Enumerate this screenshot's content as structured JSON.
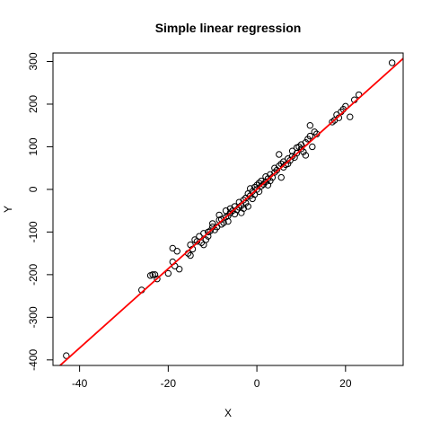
{
  "chart_data": {
    "type": "scatter",
    "title": "Simple linear regression",
    "xlabel": "X",
    "ylabel": "Y",
    "xlim": [
      -46,
      33
    ],
    "ylim": [
      -413,
      320
    ],
    "xticks": [
      -40,
      -20,
      0,
      20
    ],
    "yticks": [
      -400,
      -300,
      -200,
      -100,
      0,
      100,
      200,
      300
    ],
    "grid": false,
    "legend": "none",
    "colors": {
      "points": "#000000",
      "fit_line": "#ff0000"
    },
    "fit_line": {
      "intercept": 0,
      "slope": 9.3
    },
    "points": [
      [
        -43.0,
        -390
      ],
      [
        -26.0,
        -236
      ],
      [
        -24.0,
        -202
      ],
      [
        -23.5,
        -200
      ],
      [
        -23.0,
        -200
      ],
      [
        -22.5,
        -210
      ],
      [
        -20.0,
        -197
      ],
      [
        -19.0,
        -138
      ],
      [
        -19.0,
        -170
      ],
      [
        -18.5,
        -180
      ],
      [
        -18.0,
        -145
      ],
      [
        -17.5,
        -187
      ],
      [
        -15.5,
        -150
      ],
      [
        -15.0,
        -155
      ],
      [
        -15.0,
        -130
      ],
      [
        -14.5,
        -140
      ],
      [
        -14.0,
        -118
      ],
      [
        -13.5,
        -122
      ],
      [
        -13.0,
        -110
      ],
      [
        -12.5,
        -125
      ],
      [
        -12.0,
        -103
      ],
      [
        -12.0,
        -130
      ],
      [
        -11.5,
        -118
      ],
      [
        -11.0,
        -100
      ],
      [
        -11.0,
        -110
      ],
      [
        -10.5,
        -97
      ],
      [
        -10.0,
        -80
      ],
      [
        -10.0,
        -88
      ],
      [
        -9.5,
        -95
      ],
      [
        -9.0,
        -88
      ],
      [
        -8.5,
        -60
      ],
      [
        -8.5,
        -72
      ],
      [
        -8.0,
        -82
      ],
      [
        -8.0,
        -70
      ],
      [
        -7.5,
        -78
      ],
      [
        -7.0,
        -65
      ],
      [
        -7.0,
        -50
      ],
      [
        -6.5,
        -62
      ],
      [
        -6.5,
        -75
      ],
      [
        -6.0,
        -55
      ],
      [
        -6.0,
        -45
      ],
      [
        -5.5,
        -50
      ],
      [
        -5.0,
        -58
      ],
      [
        -5.0,
        -40
      ],
      [
        -4.5,
        -48
      ],
      [
        -4.0,
        -30
      ],
      [
        -4.0,
        -42
      ],
      [
        -3.5,
        -38
      ],
      [
        -3.5,
        -55
      ],
      [
        -3.0,
        -25
      ],
      [
        -3.0,
        -45
      ],
      [
        -2.5,
        -20
      ],
      [
        -2.5,
        -32
      ],
      [
        -2.0,
        -10
      ],
      [
        -2.0,
        -40
      ],
      [
        -1.5,
        -15
      ],
      [
        -1.5,
        2
      ],
      [
        -1.0,
        -5
      ],
      [
        -1.0,
        -22
      ],
      [
        -0.5,
        5
      ],
      [
        -0.5,
        -12
      ],
      [
        0.0,
        0
      ],
      [
        0.0,
        10
      ],
      [
        0.5,
        -5
      ],
      [
        0.5,
        15
      ],
      [
        1.0,
        8
      ],
      [
        1.0,
        20
      ],
      [
        1.5,
        12
      ],
      [
        2.0,
        18
      ],
      [
        2.0,
        30
      ],
      [
        2.5,
        25
      ],
      [
        2.5,
        10
      ],
      [
        3.0,
        35
      ],
      [
        3.0,
        20
      ],
      [
        3.5,
        28
      ],
      [
        4.0,
        40
      ],
      [
        4.0,
        50
      ],
      [
        4.5,
        45
      ],
      [
        5.0,
        55
      ],
      [
        5.0,
        82
      ],
      [
        5.5,
        60
      ],
      [
        5.5,
        28
      ],
      [
        6.0,
        52
      ],
      [
        6.0,
        65
      ],
      [
        6.5,
        58
      ],
      [
        7.0,
        72
      ],
      [
        7.0,
        60
      ],
      [
        7.5,
        68
      ],
      [
        8.0,
        78
      ],
      [
        8.0,
        90
      ],
      [
        8.5,
        75
      ],
      [
        9.0,
        98
      ],
      [
        9.0,
        85
      ],
      [
        9.5,
        100
      ],
      [
        10.0,
        95
      ],
      [
        10.0,
        105
      ],
      [
        10.5,
        88
      ],
      [
        11.0,
        110
      ],
      [
        11.0,
        80
      ],
      [
        11.5,
        118
      ],
      [
        12.0,
        150
      ],
      [
        12.0,
        125
      ],
      [
        12.5,
        100
      ],
      [
        13.0,
        135
      ],
      [
        13.5,
        130
      ],
      [
        17.0,
        158
      ],
      [
        17.5,
        162
      ],
      [
        18.0,
        175
      ],
      [
        18.5,
        168
      ],
      [
        19.0,
        182
      ],
      [
        19.5,
        188
      ],
      [
        20.0,
        195
      ],
      [
        21.0,
        170
      ],
      [
        22.0,
        210
      ],
      [
        23.0,
        222
      ],
      [
        30.5,
        297
      ]
    ]
  }
}
